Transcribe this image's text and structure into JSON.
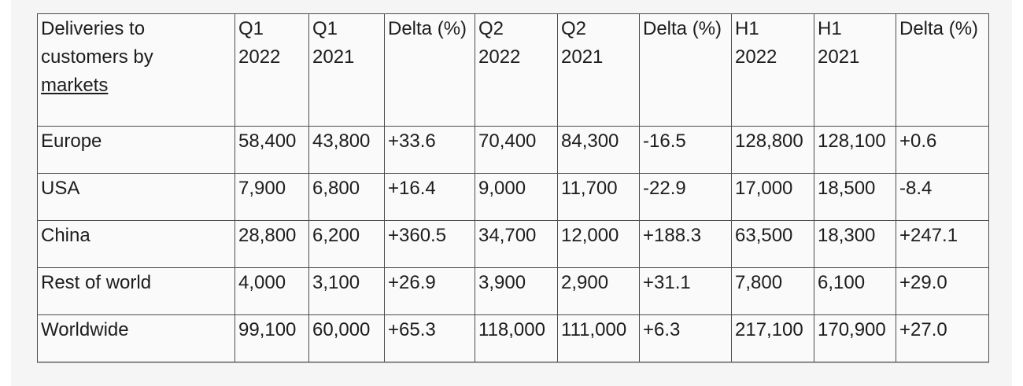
{
  "colors": {
    "page_background": "#ffffff",
    "content_background": "#f5f5f5",
    "cell_background": "#fafafa",
    "border": "#4d4d4d",
    "text": "#1d1d1f"
  },
  "table": {
    "header": {
      "market_label": {
        "lines": [
          "Deliveries to",
          "customers by"
        ],
        "linked": "markets"
      },
      "columns": [
        {
          "label": "Q1",
          "sublabel": "2022"
        },
        {
          "label": "Q1",
          "sublabel": "2021"
        },
        {
          "label": "Delta (%)",
          "sublabel": ""
        },
        {
          "label": "Q2",
          "sublabel": "2022"
        },
        {
          "label": "Q2",
          "sublabel": "2021"
        },
        {
          "label": "Delta (%)",
          "sublabel": ""
        },
        {
          "label": "H1",
          "sublabel": "2022"
        },
        {
          "label": "H1",
          "sublabel": "2021"
        },
        {
          "label": "Delta (%)",
          "sublabel": ""
        }
      ]
    },
    "rows": [
      {
        "market": "Europe",
        "values": [
          "58,400",
          "43,800",
          "+33.6",
          "70,400",
          "84,300",
          "-16.5",
          "128,800",
          "128,100",
          "+0.6"
        ]
      },
      {
        "market": "USA",
        "values": [
          "7,900",
          "6,800",
          "+16.4",
          "9,000",
          "11,700",
          "-22.9",
          "17,000",
          "18,500",
          "-8.4"
        ]
      },
      {
        "market": "China",
        "values": [
          "28,800",
          "6,200",
          "+360.5",
          "34,700",
          "12,000",
          "+188.3",
          "63,500",
          "18,300",
          "+247.1"
        ]
      },
      {
        "market": "Rest of world",
        "values": [
          "4,000",
          "3,100",
          "+26.9",
          "3,900",
          "2,900",
          "+31.1",
          "7,800",
          "6,100",
          "+29.0"
        ]
      },
      {
        "market": "Worldwide",
        "values": [
          "99,100",
          "60,000",
          "+65.3",
          "118,000",
          "111,000",
          "+6.3",
          "217,100",
          "170,900",
          "+27.0"
        ]
      }
    ]
  },
  "chart_data": {
    "type": "table",
    "title": "Deliveries to customers by markets",
    "columns": [
      "Q1 2022",
      "Q1 2021",
      "Delta (%)",
      "Q2 2022",
      "Q2 2021",
      "Delta (%)",
      "H1 2022",
      "H1 2021",
      "Delta (%)"
    ],
    "categories": [
      "Europe",
      "USA",
      "China",
      "Rest of world",
      "Worldwide"
    ],
    "series": [
      {
        "name": "Q1 2022",
        "values": [
          58400,
          7900,
          28800,
          4000,
          99100
        ]
      },
      {
        "name": "Q1 2021",
        "values": [
          43800,
          6800,
          6200,
          3100,
          60000
        ]
      },
      {
        "name": "Q1 Delta (%)",
        "values": [
          33.6,
          16.4,
          360.5,
          26.9,
          65.3
        ]
      },
      {
        "name": "Q2 2022",
        "values": [
          70400,
          9000,
          34700,
          3900,
          118000
        ]
      },
      {
        "name": "Q2 2021",
        "values": [
          84300,
          11700,
          12000,
          2900,
          111000
        ]
      },
      {
        "name": "Q2 Delta (%)",
        "values": [
          -16.5,
          -22.9,
          188.3,
          31.1,
          6.3
        ]
      },
      {
        "name": "H1 2022",
        "values": [
          128800,
          17000,
          63500,
          7800,
          217100
        ]
      },
      {
        "name": "H1 2021",
        "values": [
          128100,
          18500,
          18300,
          6100,
          170900
        ]
      },
      {
        "name": "H1 Delta (%)",
        "values": [
          0.6,
          -8.4,
          247.1,
          29.0,
          27.0
        ]
      }
    ]
  }
}
